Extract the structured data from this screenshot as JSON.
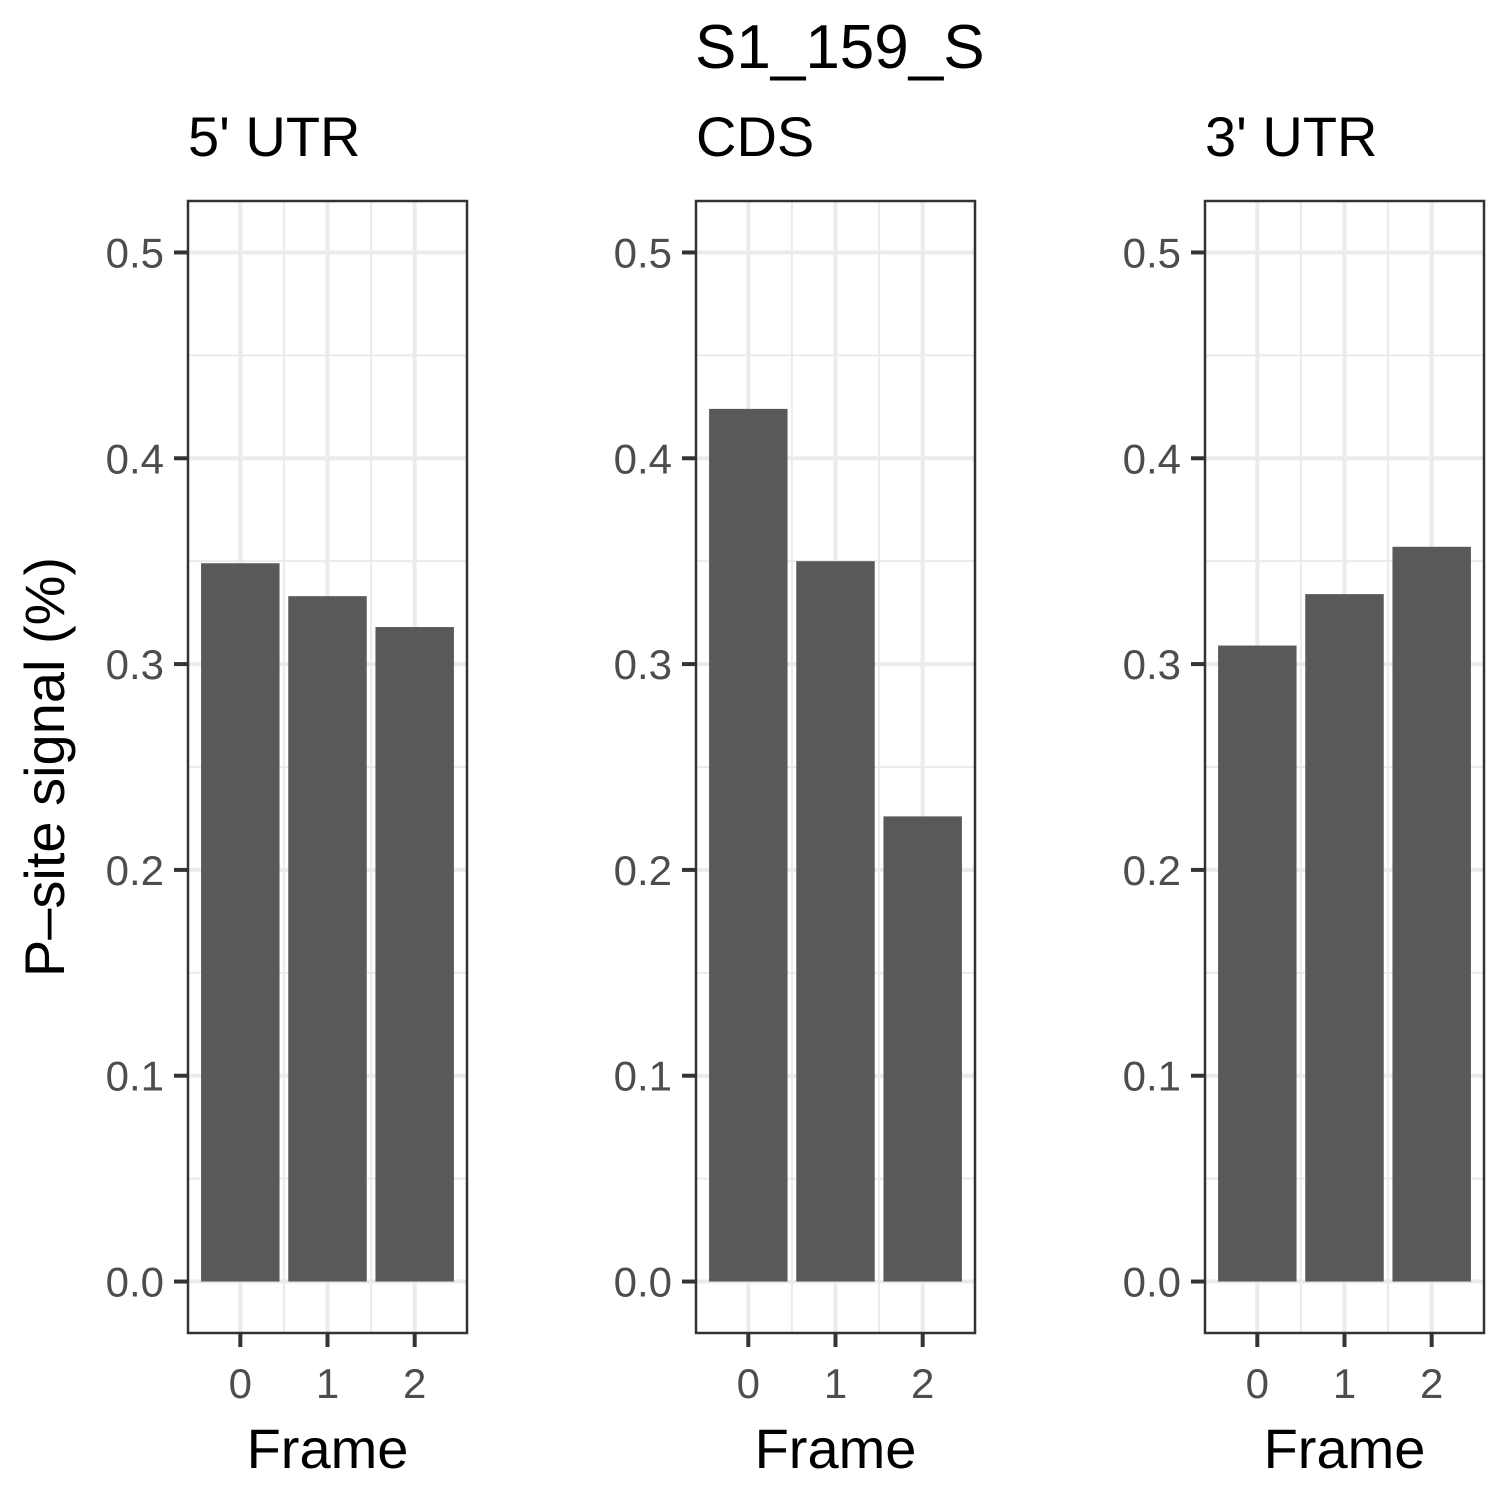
{
  "chart_data": {
    "type": "bar",
    "title": "S1_159_S",
    "ylabel": "P–site signal (%)",
    "xlabel": "Frame",
    "categories": [
      "0",
      "1",
      "2"
    ],
    "ylim": [
      -0.025,
      0.525
    ],
    "y_ticks": [
      "0.0",
      "0.1",
      "0.2",
      "0.3",
      "0.4",
      "0.5"
    ],
    "y_tick_values": [
      0.0,
      0.1,
      0.2,
      0.3,
      0.4,
      0.5
    ],
    "bar_color": "#595959",
    "grid": true,
    "legend": "none",
    "panels": [
      {
        "label": "5' UTR",
        "values": [
          0.349,
          0.333,
          0.318
        ]
      },
      {
        "label": "CDS",
        "values": [
          0.424,
          0.35,
          0.226
        ]
      },
      {
        "label": "3' UTR",
        "values": [
          0.309,
          0.334,
          0.357
        ]
      }
    ]
  }
}
